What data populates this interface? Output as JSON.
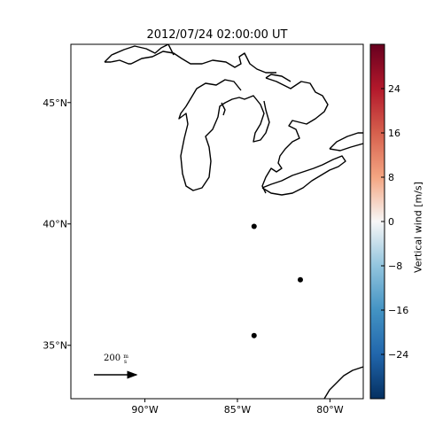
{
  "title": "2012/07/24 02:00:00 UT",
  "map": {
    "lat_ticks": [
      "45°N",
      "40°N",
      "35°N"
    ],
    "lon_ticks": [
      "90°W",
      "85°W",
      "80°W"
    ],
    "stations": [
      {
        "lon": -84.1,
        "lat": 39.9
      },
      {
        "lon": -81.6,
        "lat": 37.7
      },
      {
        "lon": -84.1,
        "lat": 35.4
      }
    ],
    "reference_arrow": {
      "label": "200",
      "unit": "m/s"
    }
  },
  "colorbar": {
    "label": "Vertical wind [m/s]",
    "ticks": [
      "24",
      "16",
      "8",
      "0",
      "−8",
      "−16",
      "−24"
    ],
    "range": [
      -32,
      32
    ],
    "colormap": "RdBu_r"
  }
}
